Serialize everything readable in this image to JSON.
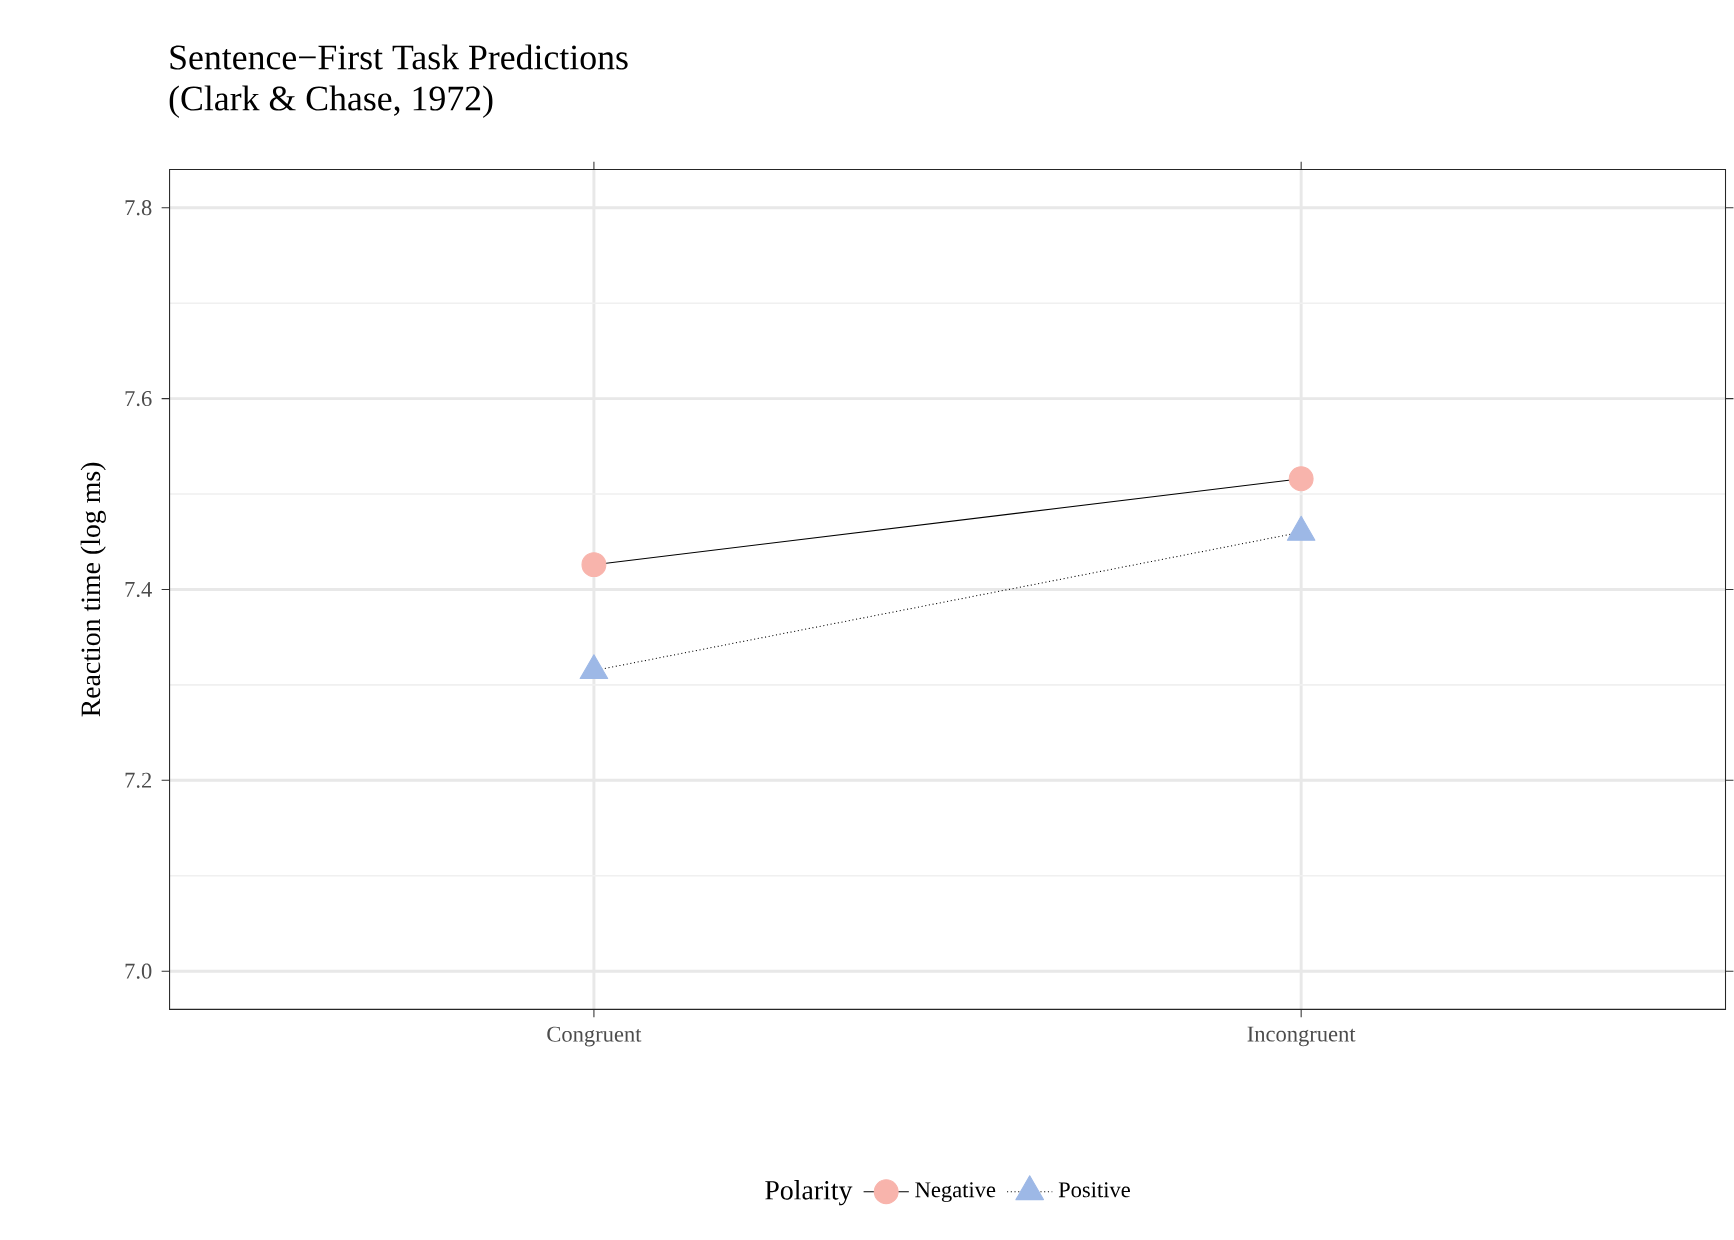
{
  "chart_data": {
    "type": "line",
    "title": "Sentence−First Task Predictions",
    "subtitle": "(Clark & Chase, 1972)",
    "ylabel": "Reaction time (log ms)",
    "legend_title": "Polarity",
    "categories": [
      "Congruent",
      "Incongruent"
    ],
    "series": [
      {
        "name": "Negative",
        "color": "#f8b4ac",
        "values": [
          7.426,
          7.516
        ],
        "marker": "circle",
        "line_style": "solid"
      },
      {
        "name": "Positive",
        "color": "#9db8e6",
        "values": [
          7.315,
          7.46
        ],
        "marker": "triangle",
        "line_style": "dotted"
      }
    ],
    "ylim": [
      6.96,
      7.84
    ],
    "yticks": [
      {
        "value": 7.0,
        "label": "7.0"
      },
      {
        "value": 7.2,
        "label": "7.2"
      },
      {
        "value": 7.4,
        "label": "7.4"
      },
      {
        "value": 7.6,
        "label": "7.6"
      },
      {
        "value": 7.8,
        "label": "7.8"
      }
    ],
    "grid": true,
    "legend": "bottom"
  }
}
